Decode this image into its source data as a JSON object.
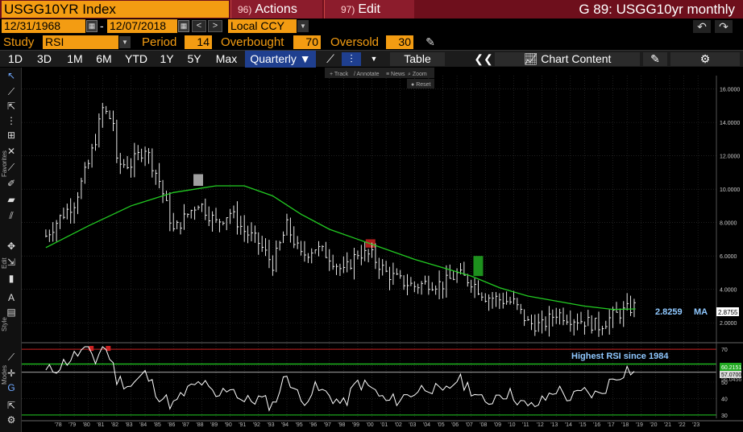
{
  "header": {
    "ticker": "USGG10YR Index",
    "actions_num": "96)",
    "actions_label": "Actions",
    "edit_num": "97)",
    "edit_label": "Edit",
    "chart_title": "G 89: USGG10yr monthly"
  },
  "daterow": {
    "start_date": "12/31/1968",
    "separator": "-",
    "end_date": "12/07/2018",
    "currency": "Local CCY"
  },
  "study": {
    "label": "Study",
    "value": "RSI",
    "period_label": "Period",
    "period_value": "14",
    "overbought_label": "Overbought",
    "overbought_value": "70",
    "oversold_label": "Oversold",
    "oversold_value": "30"
  },
  "periods": [
    "1D",
    "3D",
    "1M",
    "6M",
    "YTD",
    "1Y",
    "5Y",
    "Max"
  ],
  "frequency": "Quarterly ▼",
  "buttons": {
    "table": "Table",
    "chart_content": "Chart Content"
  },
  "chart_toolbar": {
    "track": "Track",
    "annotate": "Annotate",
    "news": "News",
    "zoom": "Zoom",
    "reset": "Reset"
  },
  "side_labels": {
    "favorites": "Favorites",
    "edit": "Edit",
    "style": "Style",
    "modes": "Modes"
  },
  "chart_data": {
    "type": "line",
    "price_panel": {
      "y_ticks": [
        "16.0000",
        "14.0000",
        "12.0000",
        "10.0000",
        "8.0000",
        "6.0000",
        "4.0000",
        "2.0000"
      ],
      "ylim": [
        1.0,
        16.8
      ],
      "last_price_label": "2.8755",
      "ma_value_label": "2.8259",
      "ma_tag": "MA",
      "series": [
        {
          "name": "USGG10YR",
          "x": [
            1977,
            1978,
            1979,
            1980,
            1980.5,
            1981,
            1981.75,
            1982,
            1983,
            1984,
            1985,
            1986,
            1987,
            1987.75,
            1988,
            1989,
            1990,
            1991,
            1992,
            1993,
            1994,
            1995,
            1996,
            1997,
            1998,
            1999,
            2000,
            2001,
            2002,
            2003,
            2004,
            2005,
            2006,
            2007,
            2008,
            2009,
            2010,
            2011,
            2012,
            2013,
            2014,
            2015,
            2016,
            2017,
            2018.6
          ],
          "y": [
            7.2,
            8.3,
            9.2,
            11.5,
            13.0,
            14.8,
            14.0,
            11.5,
            11.5,
            12.5,
            10.5,
            7.5,
            8.5,
            9.2,
            9.0,
            8.0,
            8.6,
            7.5,
            6.8,
            5.5,
            7.8,
            6.0,
            6.5,
            6.0,
            5.0,
            6.2,
            6.0,
            5.0,
            4.5,
            4.2,
            4.4,
            4.3,
            4.9,
            4.5,
            3.6,
            3.4,
            3.2,
            2.0,
            1.8,
            2.6,
            2.3,
            2.1,
            1.8,
            2.4,
            3.0
          ]
        },
        {
          "name": "MA",
          "x": [
            1977,
            1980,
            1983,
            1986,
            1989,
            1991,
            1993,
            1995,
            1997,
            1999,
            2001,
            2003,
            2005,
            2007,
            2009,
            2011,
            2013,
            2015,
            2017,
            2018.6
          ],
          "y": [
            6.5,
            7.8,
            9.0,
            9.8,
            10.2,
            10.2,
            9.6,
            8.5,
            7.6,
            7.0,
            6.4,
            5.8,
            5.3,
            4.8,
            4.1,
            3.6,
            3.3,
            3.0,
            2.8,
            2.83
          ]
        }
      ],
      "highlight_boxes": [
        {
          "x": 1987.75,
          "y_low": 10.2,
          "y_high": 10.9,
          "color": "#bbbbbb"
        },
        {
          "x": 1999.9,
          "y_low": 6.5,
          "y_high": 7.0,
          "color": "#cc2222"
        },
        {
          "x": 2007.5,
          "y_low": 4.8,
          "y_high": 6.0,
          "color": "#22aa22"
        }
      ]
    },
    "rsi_panel": {
      "y_ticks": [
        "70",
        "60",
        "50",
        "40",
        "30"
      ],
      "ylim": [
        28,
        72
      ],
      "overbought": 70,
      "oversold": 30,
      "green_line": 61,
      "value_label_1": "60.2151",
      "value_label_2": "57.0700",
      "value_label_3": "56.0456",
      "annotation": "Highest RSI since 1984",
      "series": [
        {
          "name": "RSI",
          "x": [
            1977,
            1978,
            1979,
            1980,
            1980.5,
            1981,
            1981.5,
            1982,
            1983,
            1984,
            1985,
            1986,
            1987,
            1988,
            1989,
            1990,
            1991,
            1992,
            1993,
            1994,
            1995,
            1996,
            1997,
            1998,
            1999,
            2000,
            2001,
            2002,
            2003,
            2004,
            2005,
            2006,
            2007,
            2008,
            2009,
            2010,
            2011,
            2012,
            2013,
            2014,
            2015,
            2016,
            2017,
            2018,
            2018.6
          ],
          "y": [
            56,
            60,
            66,
            71,
            63,
            72,
            66,
            52,
            48,
            55,
            42,
            36,
            45,
            50,
            40,
            48,
            38,
            40,
            36,
            55,
            38,
            46,
            42,
            36,
            50,
            46,
            38,
            40,
            44,
            48,
            42,
            52,
            46,
            36,
            44,
            42,
            34,
            38,
            46,
            40,
            44,
            42,
            52,
            58,
            56
          ]
        }
      ]
    },
    "x_tick_labels": [
      "'78",
      "'79",
      "'80",
      "'81",
      "'82",
      "'83",
      "'84",
      "'85",
      "'86",
      "'87",
      "'88",
      "'89",
      "'90",
      "'91",
      "'92",
      "'93",
      "'94",
      "'95",
      "'96",
      "'97",
      "'98",
      "'99",
      "'00",
      "'01",
      "'02",
      "'03",
      "'04",
      "'05",
      "'06",
      "'07",
      "'08",
      "'09",
      "'10",
      "'11",
      "'12",
      "'13",
      "'14",
      "'15",
      "'16",
      "'17",
      "'18",
      "'19",
      "'20",
      "'21",
      "'22",
      "'23"
    ],
    "colors": {
      "price": "#ffffff",
      "ma": "#22cc22",
      "rsi": "#ffffff",
      "overbought": "#cc2222",
      "oversold": "#22cc22",
      "ma_label": "#8fc8ff",
      "annotation": "#8fc8ff"
    }
  },
  "icons": {
    "undo": "undo-icon",
    "redo": "redo-icon",
    "pen": "pen-icon",
    "gear": "gear-icon",
    "double_chevron": "double-chevron-left-icon",
    "chart_content": "chart-content-icon"
  }
}
